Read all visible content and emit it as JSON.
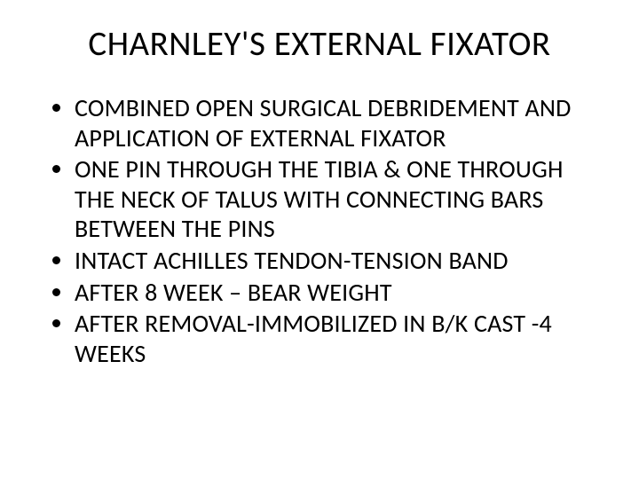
{
  "slide": {
    "title": "CHARNLEY'S EXTERNAL FIXATOR",
    "title_fontsize": 39,
    "body_fontsize": 28,
    "background_color": "#ffffff",
    "text_color": "#000000",
    "font_family": "Calibri",
    "bullets": [
      "COMBINED OPEN SURGICAL DEBRIDEMENT AND APPLICATION OF EXTERNAL FIXATOR",
      "ONE PIN THROUGH THE TIBIA & ONE THROUGH THE NECK OF TALUS WITH CONNECTING BARS BETWEEN THE PINS",
      "INTACT ACHILLES TENDON-TENSION BAND",
      "AFTER 8 WEEK – BEAR WEIGHT",
      "AFTER REMOVAL-IMMOBILIZED IN B/K CAST -4 WEEKS"
    ]
  }
}
